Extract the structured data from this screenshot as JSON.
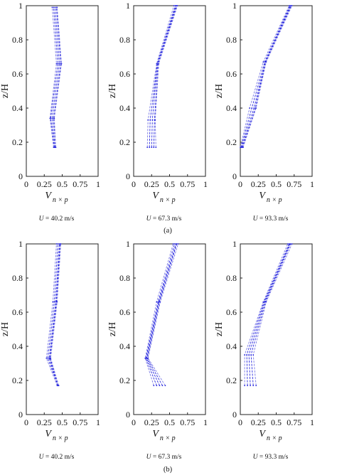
{
  "figure": {
    "panels": [
      {
        "label": "(a)"
      },
      {
        "label": "(b)"
      }
    ]
  },
  "colors": {
    "line": "#2a2adf",
    "line_light": "#7a7ae6",
    "axis": "#222222"
  },
  "axes_text": {
    "ylabel": "z/H",
    "xlabel_main": "V",
    "xlabel_sub": "n × p",
    "xticks": [
      "0",
      "0.25",
      "0.5",
      "0.75",
      "1"
    ],
    "yticks": [
      "0",
      "0.2",
      "0.4",
      "0.6",
      "0.8",
      "1"
    ]
  },
  "chart_data": [
    {
      "type": "line",
      "panel": "(a)",
      "speed_var": "U",
      "speed_text": " = 40.2 m/s",
      "xlim": [
        0,
        1
      ],
      "ylim": [
        0,
        1
      ],
      "series": [
        {
          "z": [
            0.17,
            0.34,
            0.66,
            0.99
          ],
          "x": [
            0.38,
            0.33,
            0.42,
            0.36
          ]
        },
        {
          "z": [
            0.17,
            0.34,
            0.66,
            0.99
          ],
          "x": [
            0.39,
            0.34,
            0.44,
            0.38
          ]
        },
        {
          "z": [
            0.17,
            0.34,
            0.66,
            0.99
          ],
          "x": [
            0.4,
            0.36,
            0.46,
            0.4
          ]
        },
        {
          "z": [
            0.17,
            0.34,
            0.66,
            0.99
          ],
          "x": [
            0.41,
            0.38,
            0.48,
            0.42
          ]
        },
        {
          "z": [
            0.17,
            0.34,
            0.66,
            0.99
          ],
          "x": [
            0.41,
            0.39,
            0.49,
            0.43
          ]
        }
      ]
    },
    {
      "type": "line",
      "panel": "(a)",
      "speed_var": "U",
      "speed_text": " = 67.3 m/s",
      "xlim": [
        0,
        1
      ],
      "ylim": [
        0,
        1
      ],
      "series": [
        {
          "z": [
            0.17,
            0.33,
            0.66,
            1.0
          ],
          "x": [
            0.19,
            0.2,
            0.32,
            0.56
          ]
        },
        {
          "z": [
            0.17,
            0.33,
            0.66,
            1.0
          ],
          "x": [
            0.22,
            0.23,
            0.33,
            0.58
          ]
        },
        {
          "z": [
            0.17,
            0.33,
            0.66,
            1.0
          ],
          "x": [
            0.25,
            0.26,
            0.33,
            0.59
          ]
        },
        {
          "z": [
            0.17,
            0.33,
            0.66,
            1.0
          ],
          "x": [
            0.28,
            0.29,
            0.34,
            0.6
          ]
        },
        {
          "z": [
            0.17,
            0.33,
            0.66,
            1.0
          ],
          "x": [
            0.31,
            0.3,
            0.35,
            0.61
          ]
        }
      ]
    },
    {
      "type": "line",
      "panel": "(a)",
      "speed_var": "U",
      "speed_text": " = 93.3 m/s",
      "xlim": [
        0,
        1
      ],
      "ylim": [
        0,
        1
      ],
      "series": [
        {
          "z": [
            0.17,
            0.4,
            0.67,
            1.0
          ],
          "x": [
            0.0,
            0.13,
            0.32,
            0.68
          ]
        },
        {
          "z": [
            0.17,
            0.4,
            0.67,
            1.0
          ],
          "x": [
            0.01,
            0.16,
            0.34,
            0.69
          ]
        },
        {
          "z": [
            0.17,
            0.4,
            0.67,
            1.0
          ],
          "x": [
            0.02,
            0.19,
            0.35,
            0.7
          ]
        },
        {
          "z": [
            0.17,
            0.4,
            0.67,
            1.0
          ],
          "x": [
            0.03,
            0.21,
            0.35,
            0.71
          ]
        },
        {
          "z": [
            0.17,
            0.4,
            0.67,
            1.0
          ],
          "x": [
            0.04,
            0.22,
            0.36,
            0.72
          ]
        }
      ]
    },
    {
      "type": "line",
      "panel": "(b)",
      "speed_var": "U",
      "speed_text": " = 40.2 m/s",
      "xlim": [
        0,
        1
      ],
      "ylim": [
        0,
        1
      ],
      "series": [
        {
          "z": [
            0.17,
            0.33,
            0.66,
            1.0
          ],
          "x": [
            0.43,
            0.28,
            0.37,
            0.42
          ]
        },
        {
          "z": [
            0.17,
            0.33,
            0.66,
            1.0
          ],
          "x": [
            0.44,
            0.3,
            0.39,
            0.44
          ]
        },
        {
          "z": [
            0.17,
            0.33,
            0.66,
            1.0
          ],
          "x": [
            0.44,
            0.32,
            0.41,
            0.46
          ]
        },
        {
          "z": [
            0.17,
            0.33,
            0.66,
            1.0
          ],
          "x": [
            0.45,
            0.33,
            0.42,
            0.47
          ]
        },
        {
          "z": [
            0.17,
            0.33,
            0.66,
            1.0
          ],
          "x": [
            0.45,
            0.34,
            0.43,
            0.48
          ]
        }
      ]
    },
    {
      "type": "line",
      "panel": "(b)",
      "speed_var": "U",
      "speed_text": " = 67.3 m/s",
      "xlim": [
        0,
        1
      ],
      "ylim": [
        0,
        1
      ],
      "series": [
        {
          "z": [
            0.17,
            0.33,
            0.66,
            1.0
          ],
          "x": [
            0.28,
            0.16,
            0.32,
            0.55
          ]
        },
        {
          "z": [
            0.17,
            0.33,
            0.66,
            1.0
          ],
          "x": [
            0.32,
            0.17,
            0.34,
            0.57
          ]
        },
        {
          "z": [
            0.17,
            0.33,
            0.66,
            1.0
          ],
          "x": [
            0.36,
            0.18,
            0.35,
            0.59
          ]
        },
        {
          "z": [
            0.17,
            0.33,
            0.66,
            1.0
          ],
          "x": [
            0.4,
            0.19,
            0.36,
            0.6
          ]
        },
        {
          "z": [
            0.17,
            0.33,
            0.66,
            1.0
          ],
          "x": [
            0.44,
            0.2,
            0.37,
            0.62
          ]
        }
      ]
    },
    {
      "type": "line",
      "panel": "(b)",
      "speed_var": "U",
      "speed_text": " = 93.3 m/s",
      "xlim": [
        0,
        1
      ],
      "ylim": [
        0,
        1
      ],
      "series": [
        {
          "z": [
            0.17,
            0.35,
            0.66,
            1.0
          ],
          "x": [
            0.06,
            0.06,
            0.32,
            0.66
          ]
        },
        {
          "z": [
            0.17,
            0.35,
            0.66,
            1.0
          ],
          "x": [
            0.1,
            0.09,
            0.33,
            0.68
          ]
        },
        {
          "z": [
            0.17,
            0.35,
            0.66,
            1.0
          ],
          "x": [
            0.14,
            0.12,
            0.34,
            0.69
          ]
        },
        {
          "z": [
            0.17,
            0.35,
            0.66,
            1.0
          ],
          "x": [
            0.18,
            0.15,
            0.35,
            0.7
          ]
        },
        {
          "z": [
            0.17,
            0.35,
            0.66,
            1.0
          ],
          "x": [
            0.22,
            0.18,
            0.36,
            0.72
          ]
        }
      ]
    }
  ]
}
